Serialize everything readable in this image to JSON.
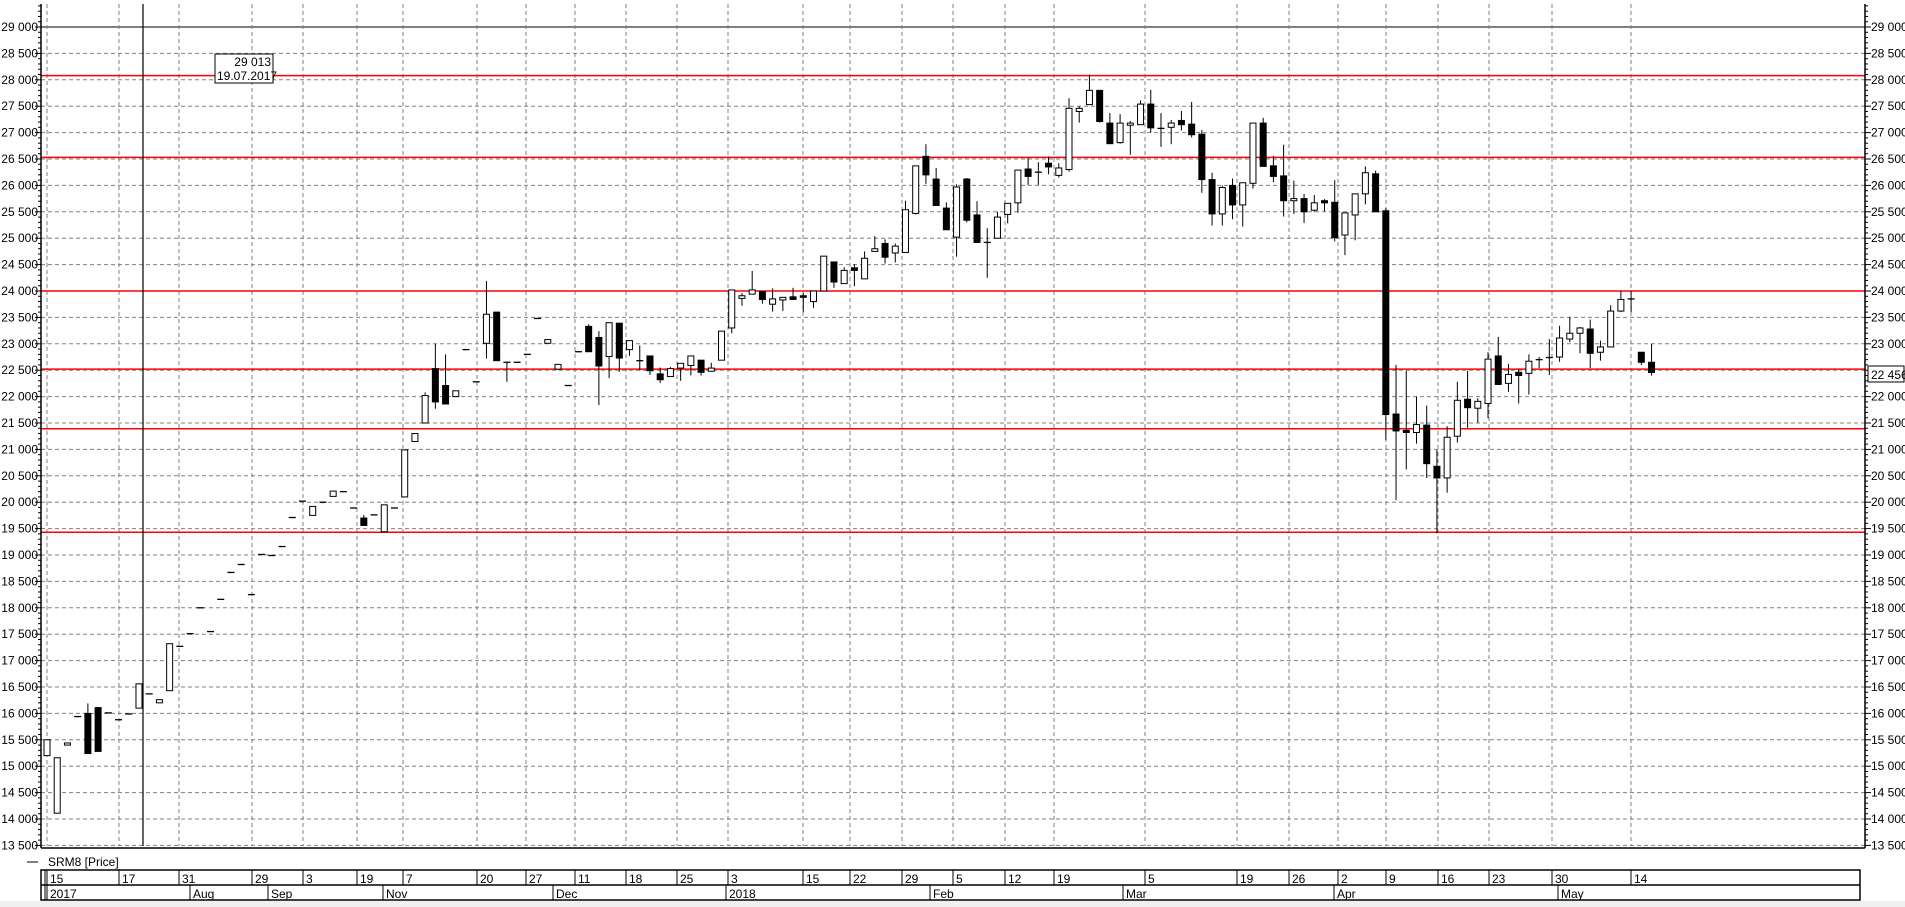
{
  "legend": {
    "series_label": "SRM8 [Price]"
  },
  "tooltip": {
    "value": "29 013",
    "date": "19.07.2017"
  },
  "last_price_label": "22 456",
  "colors": {
    "up_body": "#ffffff",
    "down_body": "#000000",
    "level_line": "#ff0000",
    "grid": "#808080"
  },
  "chart_data": {
    "type": "candlestick",
    "title": "",
    "series_name": "SRM8 [Price]",
    "ylim": [
      13500,
      29000
    ],
    "y_tick_step": 500,
    "y_ticks": [
      "13 500",
      "14 000",
      "14 500",
      "15 000",
      "15 500",
      "16 000",
      "16 500",
      "17 000",
      "17 500",
      "18 000",
      "18 500",
      "19 000",
      "19 500",
      "20 000",
      "20 500",
      "21 000",
      "21 500",
      "22 000",
      "22 500",
      "23 000",
      "23 500",
      "24 000",
      "24 500",
      "25 000",
      "25 500",
      "26 000",
      "26 500",
      "27 000",
      "27 500",
      "28 000",
      "28 500",
      "29 000"
    ],
    "grid": true,
    "x_tick_labels": [
      "15",
      "17",
      "31",
      "29",
      "3",
      "19",
      "7",
      "20",
      "27",
      "11",
      "18",
      "25",
      "3",
      "15",
      "22",
      "29",
      "5",
      "12",
      "19",
      "5",
      "19",
      "26",
      "2",
      "9",
      "16",
      "23",
      "30",
      "14"
    ],
    "x_month_labels": [
      "2017",
      "Aug",
      "Sep",
      "Nov",
      "Dec",
      "2018",
      "Feb",
      "Mar",
      "Apr",
      "May"
    ],
    "horizontal_levels": [
      28080,
      26530,
      24000,
      22520,
      21390,
      19430
    ],
    "last_price": 22456,
    "ohlc": [
      [
        15200,
        15500,
        15200,
        15500
      ],
      [
        14110,
        15160,
        14110,
        15160
      ],
      [
        15400,
        15440,
        15400,
        15440
      ],
      [
        15940,
        15940,
        15940,
        15940
      ],
      [
        16000,
        16190,
        15240,
        15240
      ],
      [
        16110,
        16110,
        15280,
        15280
      ],
      [
        16010,
        16010,
        16010,
        16010
      ],
      [
        15880,
        15880,
        15880,
        15880
      ],
      [
        15990,
        15990,
        15990,
        15990
      ],
      [
        16100,
        16560,
        16100,
        16560
      ],
      [
        16370,
        16370,
        16370,
        16370
      ],
      [
        16200,
        16260,
        16200,
        16260
      ],
      [
        16430,
        17320,
        16430,
        17320
      ],
      [
        17270,
        17270,
        17270,
        17270
      ],
      [
        17510,
        17510,
        17510,
        17510
      ],
      [
        18000,
        18000,
        18000,
        18000
      ],
      [
        17550,
        17550,
        17550,
        17550
      ],
      [
        18160,
        18160,
        18160,
        18160
      ],
      [
        18670,
        18670,
        18670,
        18670
      ],
      [
        18820,
        18820,
        18820,
        18820
      ],
      [
        18250,
        18250,
        18250,
        18250
      ],
      [
        19010,
        19010,
        19010,
        19010
      ],
      [
        18990,
        18990,
        18990,
        18990
      ],
      [
        19160,
        19160,
        19160,
        19160
      ],
      [
        19710,
        19710,
        19710,
        19710
      ],
      [
        20020,
        20020,
        20020,
        20020
      ],
      [
        19750,
        19920,
        19750,
        19920
      ],
      [
        20000,
        20000,
        19980,
        19980
      ],
      [
        20110,
        20210,
        20110,
        20210
      ],
      [
        20200,
        20200,
        20200,
        20200
      ],
      [
        19890,
        19890,
        19890,
        19890
      ],
      [
        19700,
        19760,
        19560,
        19560
      ],
      [
        19760,
        19760,
        19760,
        19760
      ],
      [
        19440,
        19950,
        19440,
        19950
      ],
      [
        19890,
        19890,
        19890,
        19890
      ],
      [
        20100,
        20990,
        20100,
        20990
      ],
      [
        21150,
        21300,
        21150,
        21300
      ],
      [
        21500,
        22080,
        21500,
        22020
      ],
      [
        22530,
        23000,
        21770,
        21900
      ],
      [
        22210,
        22800,
        21860,
        21860
      ],
      [
        22000,
        22110,
        22000,
        22110
      ],
      [
        22890,
        22890,
        22890,
        22890
      ],
      [
        22280,
        22280,
        22280,
        22280
      ],
      [
        23010,
        24190,
        22720,
        23560
      ],
      [
        23600,
        23600,
        22680,
        22680
      ],
      [
        22650,
        22650,
        22280,
        22650
      ],
      [
        22650,
        22650,
        22650,
        22650
      ],
      [
        22800,
        22800,
        22800,
        22800
      ],
      [
        23480,
        23480,
        23480,
        23480
      ],
      [
        23010,
        23080,
        23010,
        23080
      ],
      [
        22520,
        22610,
        22520,
        22610
      ],
      [
        22210,
        22210,
        22210,
        22210
      ],
      [
        22850,
        22850,
        22850,
        22850
      ],
      [
        23330,
        23370,
        22850,
        22850
      ],
      [
        23120,
        23240,
        21840,
        22580
      ],
      [
        22760,
        23400,
        22350,
        23400
      ],
      [
        23390,
        23390,
        22470,
        22730
      ],
      [
        22890,
        23060,
        22770,
        23060
      ],
      [
        22680,
        22970,
        22500,
        22680
      ],
      [
        22770,
        22770,
        22410,
        22490
      ],
      [
        22430,
        22550,
        22260,
        22320
      ],
      [
        22380,
        22560,
        22380,
        22530
      ],
      [
        22540,
        22630,
        22300,
        22630
      ],
      [
        22590,
        22770,
        22400,
        22770
      ],
      [
        22690,
        22690,
        22400,
        22460
      ],
      [
        22480,
        22640,
        22480,
        22540
      ],
      [
        22690,
        23240,
        22690,
        23240
      ],
      [
        23300,
        24020,
        23200,
        24020
      ],
      [
        23860,
        23960,
        23720,
        23910
      ],
      [
        23940,
        24380,
        23940,
        24020
      ],
      [
        23990,
        23990,
        23760,
        23840
      ],
      [
        23750,
        24050,
        23610,
        23850
      ],
      [
        23830,
        23880,
        23620,
        23880
      ],
      [
        23890,
        24060,
        23840,
        23840
      ],
      [
        23910,
        23960,
        23600,
        23880
      ],
      [
        23800,
        24000,
        23680,
        24000
      ],
      [
        24000,
        24660,
        24000,
        24660
      ],
      [
        24550,
        24550,
        24060,
        24170
      ],
      [
        24140,
        24450,
        24140,
        24390
      ],
      [
        24440,
        24510,
        24090,
        24390
      ],
      [
        24230,
        24750,
        24230,
        24620
      ],
      [
        24750,
        25040,
        24750,
        24800
      ],
      [
        24900,
        24980,
        24520,
        24640
      ],
      [
        24720,
        24900,
        24540,
        24850
      ],
      [
        24730,
        25710,
        24730,
        25540
      ],
      [
        25470,
        26370,
        25450,
        26370
      ],
      [
        26550,
        26780,
        26030,
        26200
      ],
      [
        26120,
        26330,
        25620,
        25620
      ],
      [
        25570,
        25680,
        25160,
        25160
      ],
      [
        25020,
        26020,
        24650,
        25970
      ],
      [
        26120,
        26140,
        25300,
        25340
      ],
      [
        25440,
        25700,
        24920,
        24920
      ],
      [
        24920,
        25190,
        24250,
        24920
      ],
      [
        25000,
        25500,
        25000,
        25400
      ],
      [
        25450,
        25660,
        25280,
        25660
      ],
      [
        25670,
        26290,
        25480,
        26290
      ],
      [
        26310,
        26520,
        26010,
        26170
      ],
      [
        26250,
        26440,
        26010,
        26250
      ],
      [
        26420,
        26550,
        26210,
        26350
      ],
      [
        26190,
        26420,
        26150,
        26330
      ],
      [
        26300,
        27650,
        26260,
        27460
      ],
      [
        27400,
        27500,
        27190,
        27460
      ],
      [
        27530,
        28100,
        27530,
        27800
      ],
      [
        27800,
        27800,
        27190,
        27210
      ],
      [
        27180,
        27370,
        26790,
        26790
      ],
      [
        26810,
        27350,
        26790,
        27180
      ],
      [
        27140,
        27220,
        26580,
        27180
      ],
      [
        27150,
        27610,
        27150,
        27540
      ],
      [
        27540,
        27810,
        27000,
        27090
      ],
      [
        27080,
        27370,
        26730,
        27080
      ],
      [
        27100,
        27240,
        26780,
        27180
      ],
      [
        27230,
        27410,
        27040,
        27150
      ],
      [
        27160,
        27580,
        26910,
        26960
      ],
      [
        26970,
        27050,
        25860,
        26110
      ],
      [
        26110,
        26240,
        25240,
        25460
      ],
      [
        25460,
        26000,
        25240,
        25960
      ],
      [
        26000,
        26130,
        25360,
        25630
      ],
      [
        25630,
        26050,
        25220,
        26050
      ],
      [
        26040,
        27180,
        25940,
        27180
      ],
      [
        27180,
        27280,
        26360,
        26360
      ],
      [
        26370,
        26560,
        26060,
        26170
      ],
      [
        26180,
        26770,
        25410,
        25710
      ],
      [
        25710,
        26090,
        25460,
        25750
      ],
      [
        25750,
        25840,
        25290,
        25500
      ],
      [
        25530,
        25820,
        25500,
        25670
      ],
      [
        25710,
        25740,
        25510,
        25670
      ],
      [
        25680,
        26100,
        24940,
        25010
      ],
      [
        25060,
        25480,
        24680,
        25480
      ],
      [
        25440,
        25840,
        24960,
        25840
      ],
      [
        25840,
        26360,
        25640,
        26240
      ],
      [
        26220,
        26280,
        25500,
        25500
      ],
      [
        25520,
        25570,
        21180,
        21660
      ],
      [
        21670,
        22600,
        20040,
        21350
      ],
      [
        21360,
        22490,
        20620,
        21320
      ],
      [
        21320,
        22000,
        21110,
        21470
      ],
      [
        21460,
        21830,
        20460,
        20730
      ],
      [
        20680,
        20990,
        19410,
        20460
      ],
      [
        20460,
        21440,
        20180,
        21230
      ],
      [
        21250,
        22280,
        21130,
        21930
      ],
      [
        21950,
        22490,
        21410,
        21790
      ],
      [
        21780,
        21970,
        21510,
        21910
      ],
      [
        21870,
        22840,
        21590,
        22710
      ],
      [
        22770,
        23130,
        22230,
        22230
      ],
      [
        22250,
        22620,
        22090,
        22420
      ],
      [
        22460,
        22530,
        21870,
        22400
      ],
      [
        22440,
        22800,
        22040,
        22670
      ],
      [
        22700,
        22750,
        22540,
        22700
      ],
      [
        22740,
        23090,
        22410,
        22740
      ],
      [
        22750,
        23340,
        22660,
        23110
      ],
      [
        23090,
        23510,
        23030,
        23200
      ],
      [
        23200,
        23320,
        22820,
        23300
      ],
      [
        23280,
        23460,
        22540,
        22820
      ],
      [
        22840,
        23060,
        22680,
        22940
      ],
      [
        22940,
        23730,
        22940,
        23620
      ],
      [
        23620,
        24000,
        23600,
        23840
      ],
      [
        23850,
        24000,
        23600,
        23850
      ],
      [
        22840,
        22840,
        22600,
        22650
      ],
      [
        22650,
        23000,
        22400,
        22456
      ]
    ]
  }
}
